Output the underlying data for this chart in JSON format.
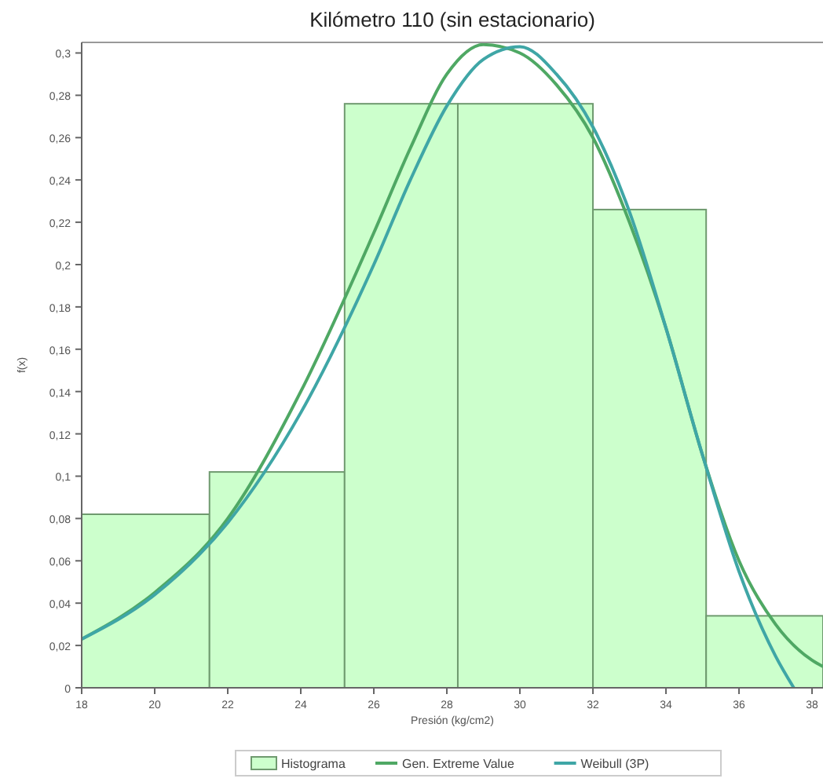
{
  "chart_data": {
    "type": "histogram",
    "title": "Kilómetro 110 (sin estacionario)",
    "xlabel": "Presión (kg/cm2)",
    "ylabel": "f(x)",
    "xlim": [
      18,
      38.3
    ],
    "ylim": [
      0,
      0.305
    ],
    "xticks": [
      18,
      20,
      22,
      24,
      26,
      28,
      30,
      32,
      34,
      36,
      38
    ],
    "yticks": [
      {
        "value": 0,
        "label": "0"
      },
      {
        "value": 0.02,
        "label": "0,02"
      },
      {
        "value": 0.04,
        "label": "0,04"
      },
      {
        "value": 0.06,
        "label": "0,06"
      },
      {
        "value": 0.08,
        "label": "0,08"
      },
      {
        "value": 0.1,
        "label": "0,1"
      },
      {
        "value": 0.12,
        "label": "0,12"
      },
      {
        "value": 0.14,
        "label": "0,14"
      },
      {
        "value": 0.16,
        "label": "0,16"
      },
      {
        "value": 0.18,
        "label": "0,18"
      },
      {
        "value": 0.2,
        "label": "0,2"
      },
      {
        "value": 0.22,
        "label": "0,22"
      },
      {
        "value": 0.24,
        "label": "0,24"
      },
      {
        "value": 0.26,
        "label": "0,26"
      },
      {
        "value": 0.28,
        "label": "0,28"
      },
      {
        "value": 0.3,
        "label": "0,3"
      }
    ],
    "grid": false,
    "legend": "bottom",
    "series": [
      {
        "name": "Histograma",
        "color": "#ccffcc",
        "bins": [
          18,
          21.5,
          25.2,
          28.3,
          32,
          35.1,
          38.3
        ],
        "values": [
          0.082,
          0.102,
          0.276,
          0.276,
          0.226,
          0.034
        ]
      },
      {
        "name": "Gen. Extreme Value",
        "type": "line",
        "color": "#4fa864",
        "x": [
          18,
          20,
          22,
          24,
          26,
          27,
          28,
          29,
          30,
          31,
          32,
          33,
          34,
          35,
          36,
          37,
          38,
          38.3
        ],
        "values": [
          0.023,
          0.045,
          0.08,
          0.14,
          0.215,
          0.255,
          0.29,
          0.304,
          0.3,
          0.285,
          0.26,
          0.22,
          0.17,
          0.11,
          0.06,
          0.03,
          0.013,
          0.01
        ]
      },
      {
        "name": "Weibull (3P)",
        "type": "line",
        "color": "#3fa6a6",
        "x": [
          18,
          20,
          22,
          24,
          26,
          27,
          28,
          29,
          30,
          31,
          32,
          33,
          34,
          35,
          36,
          37,
          37.5
        ],
        "values": [
          0.023,
          0.044,
          0.078,
          0.13,
          0.2,
          0.24,
          0.275,
          0.297,
          0.303,
          0.29,
          0.265,
          0.225,
          0.17,
          0.11,
          0.055,
          0.015,
          0
        ]
      }
    ]
  }
}
